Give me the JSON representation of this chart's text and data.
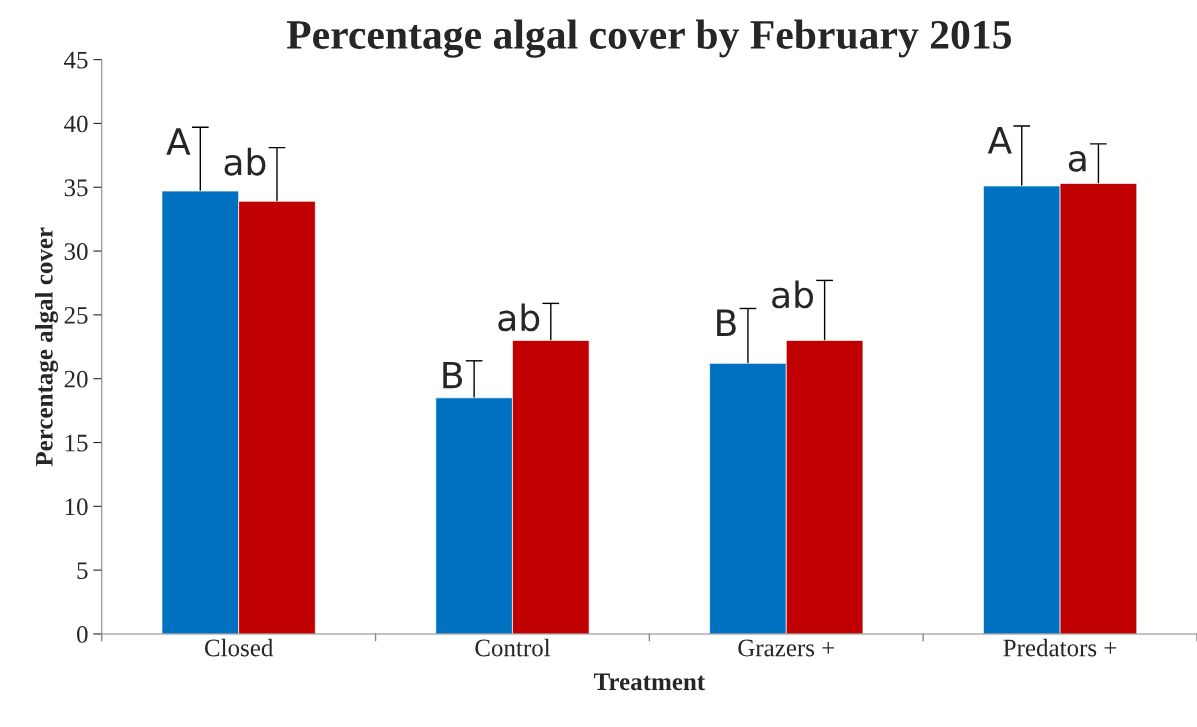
{
  "chart_data": {
    "type": "bar",
    "title": "Percentage algal cover by February 2015",
    "xlabel": "Treatment",
    "ylabel": "Percentage algal cover",
    "categories": [
      "Closed",
      "Control",
      "Grazers +",
      "Predators +"
    ],
    "series": [
      {
        "color": "#0070c0",
        "values": [
          34.7,
          18.5,
          21.2,
          35.1
        ],
        "errors": [
          5.0,
          2.9,
          4.3,
          4.7
        ]
      },
      {
        "color": "#c00000",
        "values": [
          33.9,
          23.0,
          23.0,
          35.3
        ],
        "errors": [
          4.2,
          2.9,
          4.7,
          3.1
        ]
      }
    ],
    "annotations": [
      "A",
      "ab",
      "B",
      "ab",
      "B",
      "ab",
      "A",
      "a"
    ],
    "ylim": [
      0,
      45
    ],
    "yticks": [
      0,
      5,
      10,
      15,
      20,
      25,
      30,
      35,
      40,
      45
    ],
    "grid": false,
    "legend": false
  }
}
